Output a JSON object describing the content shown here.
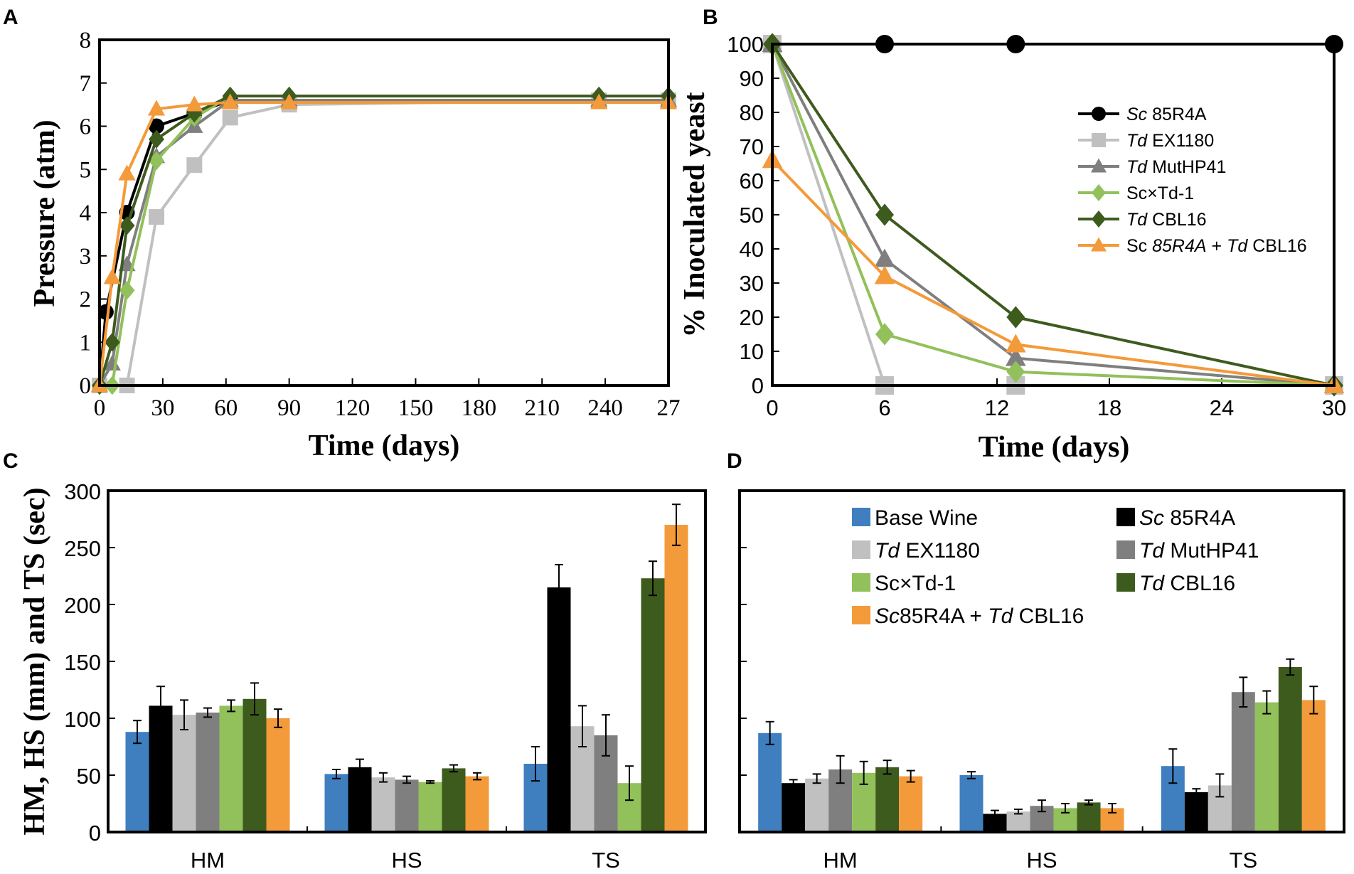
{
  "colors": {
    "Sc 85R4A": "#000000",
    "Td EX1180": "#c0c0c0",
    "Td MutHP41": "#7f7f7f",
    "Sc×Td-1": "#92c05a",
    "Td CBL16": "#3e5b1e",
    "Sc 85R4A + Td CBL16": "#f39a3a",
    "Base Wine": "#3f7fc0"
  },
  "chart_data": [
    {
      "panel": "A",
      "type": "line",
      "title": "",
      "xlabel": "Time (days)",
      "ylabel": "Pressure (atm)",
      "xlim": [
        0,
        270
      ],
      "ylim": [
        0,
        8
      ],
      "xtick_labels": [
        "0",
        "30",
        "60",
        "90",
        "120",
        "150",
        "180",
        "210",
        "240",
        "27"
      ],
      "ytick_labels": [
        "0",
        "1",
        "2",
        "3",
        "4",
        "5",
        "6",
        "7",
        "8"
      ],
      "series": [
        {
          "name": "Sc 85R4A",
          "marker": "circle",
          "x": [
            0,
            3,
            13,
            27,
            45,
            62,
            90,
            237,
            270
          ],
          "y": [
            0,
            1.7,
            4.0,
            6.0,
            6.3,
            6.6,
            6.6,
            6.6,
            6.6
          ]
        },
        {
          "name": "Td EX1180",
          "marker": "square",
          "x": [
            0,
            13,
            27,
            45,
            62,
            90,
            237,
            270
          ],
          "y": [
            0,
            0,
            3.9,
            5.1,
            6.2,
            6.5,
            6.6,
            6.6
          ]
        },
        {
          "name": "Td MutHP41",
          "marker": "triangle",
          "x": [
            0,
            6,
            13,
            27,
            45,
            62,
            90,
            237,
            270
          ],
          "y": [
            0,
            0.5,
            2.8,
            5.3,
            6.0,
            6.6,
            6.6,
            6.6,
            6.6
          ]
        },
        {
          "name": "Sc×Td-1",
          "marker": "diamond",
          "x": [
            0,
            6,
            13,
            27,
            45,
            62,
            90,
            237,
            270
          ],
          "y": [
            0,
            0,
            2.2,
            5.2,
            6.2,
            6.7,
            6.7,
            6.7,
            6.7
          ]
        },
        {
          "name": "Td CBL16",
          "marker": "diamond",
          "x": [
            0,
            6,
            13,
            27,
            45,
            62,
            90,
            237,
            270
          ],
          "y": [
            0,
            1.0,
            3.7,
            5.7,
            6.3,
            6.7,
            6.7,
            6.7,
            6.7
          ]
        },
        {
          "name": "Sc 85R4A + Td CBL16",
          "marker": "triangle",
          "x": [
            0,
            6,
            13,
            27,
            45,
            62,
            90,
            237,
            270
          ],
          "y": [
            0,
            2.5,
            4.9,
            6.4,
            6.5,
            6.55,
            6.55,
            6.55,
            6.55
          ]
        }
      ]
    },
    {
      "panel": "B",
      "type": "line",
      "title": "",
      "xlabel": "Time (days)",
      "ylabel": "% Inoculated yeast",
      "xlim": [
        0,
        30
      ],
      "ylim": [
        0,
        100
      ],
      "xtick_labels": [
        "0",
        "6",
        "12",
        "18",
        "24",
        "30"
      ],
      "ytick_labels": [
        "0",
        "10",
        "20",
        "30",
        "40",
        "50",
        "60",
        "70",
        "80",
        "90",
        "100"
      ],
      "legend_position": "right",
      "series": [
        {
          "name": "Sc 85R4A",
          "legend": [
            "Sc",
            " 85R4A"
          ],
          "marker": "circle",
          "x": [
            0,
            6,
            13,
            30
          ],
          "y": [
            100,
            100,
            100,
            100
          ]
        },
        {
          "name": "Td EX1180",
          "legend": [
            "Td",
            " EX1180"
          ],
          "marker": "square",
          "x": [
            0,
            6,
            13,
            30
          ],
          "y": [
            100,
            0,
            0,
            0
          ]
        },
        {
          "name": "Td MutHP41",
          "legend": [
            "Td",
            " MutHP41"
          ],
          "marker": "triangle",
          "x": [
            0,
            6,
            13,
            30
          ],
          "y": [
            100,
            37,
            8,
            0
          ]
        },
        {
          "name": "Sc×Td-1",
          "legend": [
            "",
            "Sc×Td-1"
          ],
          "marker": "diamond",
          "x": [
            0,
            6,
            13,
            30
          ],
          "y": [
            100,
            15,
            4,
            0
          ]
        },
        {
          "name": "Td CBL16",
          "legend": [
            "Td",
            " CBL16"
          ],
          "marker": "diamond",
          "x": [
            0,
            6,
            13,
            30
          ],
          "y": [
            100,
            50,
            20,
            0
          ]
        },
        {
          "name": "Sc 85R4A + Td CBL16",
          "legend": [
            "",
            "Sc ",
            "85R4A",
            " + ",
            "Td",
            " CBL16"
          ],
          "marker": "triangle",
          "x": [
            0,
            6,
            13,
            30
          ],
          "y": [
            66,
            32,
            12,
            0
          ]
        }
      ]
    },
    {
      "panel": "C",
      "type": "bar",
      "title": "",
      "xlabel": "",
      "ylabel": "HM, HS (mm) and TS (sec)",
      "ylim": [
        0,
        300
      ],
      "ytick_labels": [
        "0",
        "50",
        "100",
        "150",
        "200",
        "250",
        "300"
      ],
      "categories": [
        "HM",
        "HS",
        "TS"
      ],
      "series": [
        {
          "name": "Base Wine",
          "values": [
            88,
            51,
            60
          ],
          "errors": [
            10,
            4,
            15
          ]
        },
        {
          "name": "Sc 85R4A",
          "values": [
            111,
            57,
            215
          ],
          "errors": [
            17,
            7,
            20
          ]
        },
        {
          "name": "Td EX1180",
          "values": [
            103,
            48,
            93
          ],
          "errors": [
            13,
            4,
            18
          ]
        },
        {
          "name": "Td MutHP41",
          "values": [
            105,
            46,
            85
          ],
          "errors": [
            4,
            3,
            18
          ]
        },
        {
          "name": "Sc×Td-1",
          "values": [
            111,
            44,
            43
          ],
          "errors": [
            5,
            1,
            15
          ]
        },
        {
          "name": "Td CBL16",
          "values": [
            117,
            56,
            223
          ],
          "errors": [
            14,
            3,
            15
          ]
        },
        {
          "name": "Sc 85R4A + Td CBL16",
          "values": [
            100,
            49,
            270
          ],
          "errors": [
            8,
            3,
            18
          ]
        }
      ]
    },
    {
      "panel": "D",
      "type": "bar",
      "title": "",
      "xlabel": "",
      "ylabel": "",
      "ylim": [
        0,
        300
      ],
      "categories": [
        "HM",
        "HS",
        "TS"
      ],
      "legend_position": "top",
      "series": [
        {
          "name": "Base Wine",
          "legend": [
            "",
            "Base Wine"
          ],
          "values": [
            87,
            50,
            58
          ],
          "errors": [
            10,
            3,
            15
          ]
        },
        {
          "name": "Sc 85R4A",
          "legend": [
            "Sc",
            " 85R4A"
          ],
          "values": [
            43,
            16,
            35
          ],
          "errors": [
            3,
            3,
            3
          ]
        },
        {
          "name": "Td EX1180",
          "legend": [
            "Td",
            " EX1180"
          ],
          "values": [
            47,
            18,
            41
          ],
          "errors": [
            4,
            2,
            10
          ]
        },
        {
          "name": "Td MutHP41",
          "legend": [
            "Td",
            " MutHP41"
          ],
          "values": [
            55,
            23,
            123
          ],
          "errors": [
            12,
            5,
            13
          ]
        },
        {
          "name": "Sc×Td-1",
          "legend": [
            "",
            "Sc×Td-1"
          ],
          "values": [
            52,
            21,
            114
          ],
          "errors": [
            10,
            4,
            10
          ]
        },
        {
          "name": "Td CBL16",
          "legend": [
            "Td",
            " CBL16"
          ],
          "values": [
            57,
            26,
            145
          ],
          "errors": [
            6,
            2,
            7
          ]
        },
        {
          "name": "Sc 85R4A + Td CBL16",
          "legend": [
            "Sc",
            "85R4A + ",
            "Td",
            " CBL16"
          ],
          "values": [
            49,
            21,
            116
          ],
          "errors": [
            5,
            4,
            12
          ]
        }
      ]
    }
  ]
}
